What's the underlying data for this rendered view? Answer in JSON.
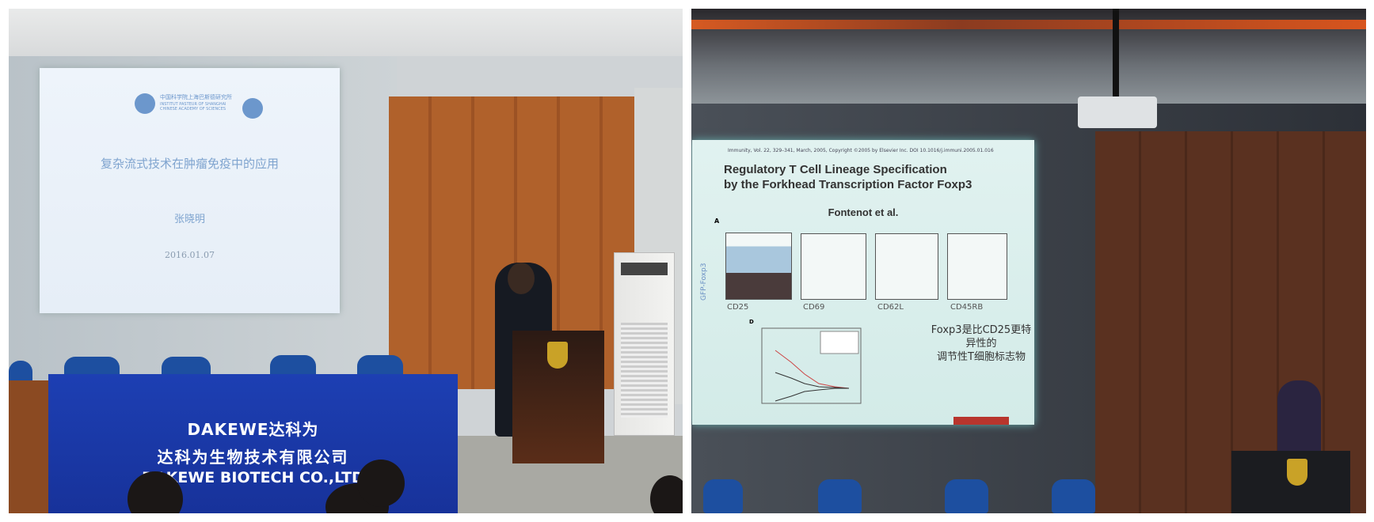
{
  "left_photo": {
    "slide": {
      "logo_text_cn": "中国科学院上海巴斯德研究所",
      "logo_text_en": "INSTITUT PASTEUR OF SHANGHAI CHINESE ACADEMY OF SCIENCES",
      "title": "复杂流式技术在肿瘤免疫中的应用",
      "presenter": "张晓明",
      "date": "2016.01.07"
    },
    "banner": {
      "brand": "DAKEWE达科为",
      "company_cn": "达科为生物技术有限公司",
      "company_en": "DAKEWE BIOTECH CO.,LTD"
    }
  },
  "right_photo": {
    "slide": {
      "citation": "Immunity, Vol. 22, 329–341, March, 2005, Copyright ©2005 by Elsevier Inc.  DOI 10.1016/j.immuni.2005.01.016",
      "title_line1": "Regulatory T Cell Lineage Specification",
      "title_line2": "by the Forkhead Transcription Factor Foxp3",
      "authors": "Fontenot et al.",
      "panel_a_label": "A",
      "panel_d_label": "D",
      "y_axis": "GFP-Foxp3",
      "x_axes": [
        "CD25",
        "CD69",
        "CD62L",
        "CD45RB"
      ],
      "caption_line1": "Foxp3是比CD25更特异性的",
      "caption_line2": "调节性T细胞标志物"
    }
  }
}
